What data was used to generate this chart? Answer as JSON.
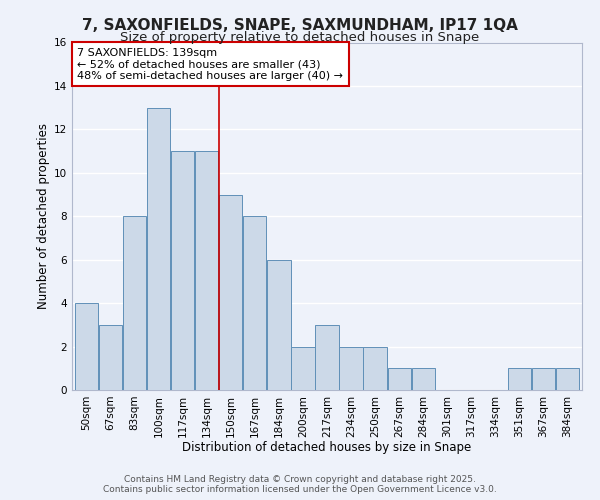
{
  "title": "7, SAXONFIELDS, SNAPE, SAXMUNDHAM, IP17 1QA",
  "subtitle": "Size of property relative to detached houses in Snape",
  "xlabel": "Distribution of detached houses by size in Snape",
  "ylabel": "Number of detached properties",
  "bar_color": "#ccd9e8",
  "bar_edge_color": "#6090b8",
  "background_color": "#eef2fa",
  "grid_color": "#ffffff",
  "categories": [
    "50sqm",
    "67sqm",
    "83sqm",
    "100sqm",
    "117sqm",
    "134sqm",
    "150sqm",
    "167sqm",
    "184sqm",
    "200sqm",
    "217sqm",
    "234sqm",
    "250sqm",
    "267sqm",
    "284sqm",
    "301sqm",
    "317sqm",
    "334sqm",
    "351sqm",
    "367sqm",
    "384sqm"
  ],
  "values": [
    4,
    3,
    8,
    13,
    11,
    11,
    9,
    8,
    6,
    2,
    3,
    2,
    2,
    1,
    1,
    0,
    0,
    0,
    1,
    1,
    1
  ],
  "ylim": [
    0,
    16
  ],
  "yticks": [
    0,
    2,
    4,
    6,
    8,
    10,
    12,
    14,
    16
  ],
  "vline_position": 5.5,
  "vline_color": "#cc0000",
  "annotation_text": "7 SAXONFIELDS: 139sqm\n← 52% of detached houses are smaller (43)\n48% of semi-detached houses are larger (40) →",
  "annotation_box_edge": "#cc0000",
  "footer_line1": "Contains HM Land Registry data © Crown copyright and database right 2025.",
  "footer_line2": "Contains public sector information licensed under the Open Government Licence v3.0.",
  "title_fontsize": 11,
  "subtitle_fontsize": 9.5,
  "tick_fontsize": 7.5,
  "axis_label_fontsize": 8.5,
  "annotation_fontsize": 8,
  "footer_fontsize": 6.5
}
